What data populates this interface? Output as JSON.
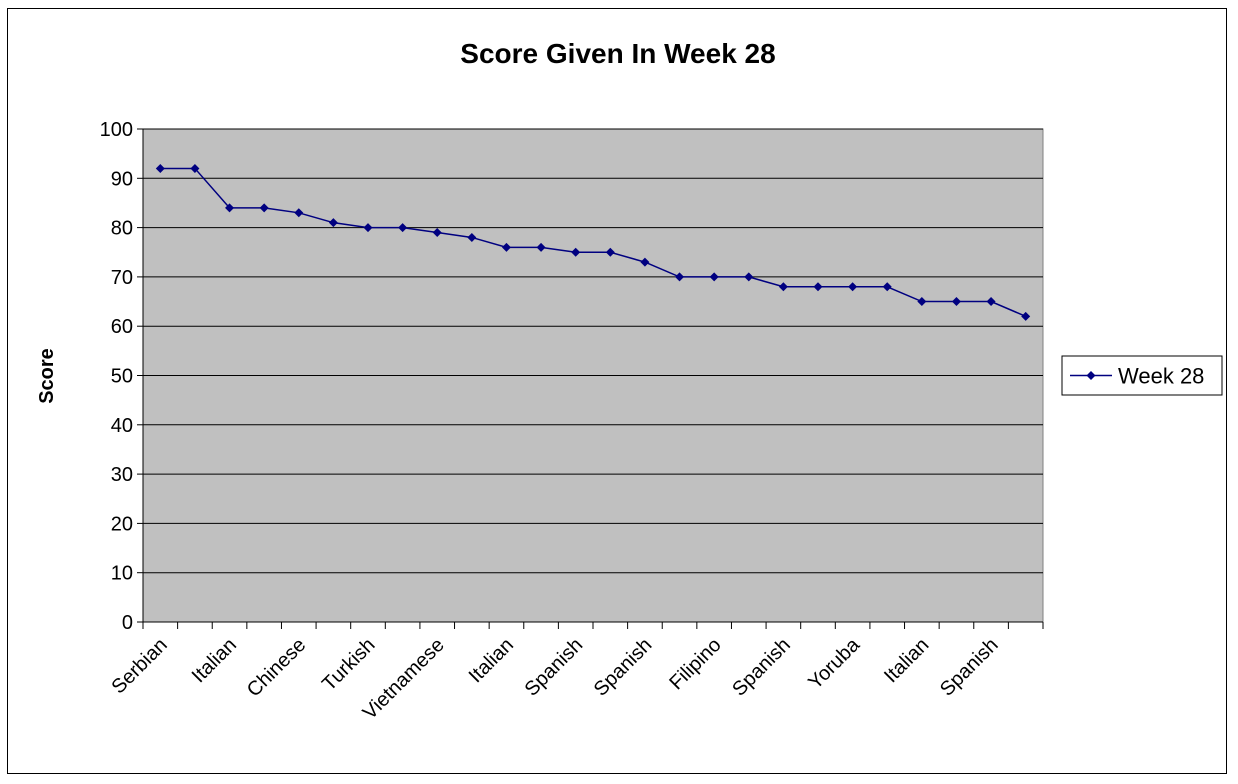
{
  "chart_data": {
    "type": "line",
    "title": "Score Given In Week 28",
    "xlabel": "",
    "ylabel": "Score",
    "ylim": [
      0,
      100
    ],
    "yticks": [
      0,
      10,
      20,
      30,
      40,
      50,
      60,
      70,
      80,
      90,
      100
    ],
    "categories": [
      "Serbian",
      "",
      "Italian",
      "",
      "Chinese",
      "",
      "Turkish",
      "",
      "Vietnamese",
      "",
      "Italian",
      "",
      "Spanish",
      "",
      "Spanish",
      "",
      "Filipino",
      "",
      "Spanish",
      "",
      "Yoruba",
      "",
      "Italian",
      "",
      "Spanish",
      ""
    ],
    "series": [
      {
        "name": "Week 28",
        "values": [
          92,
          92,
          84,
          84,
          83,
          81,
          80,
          80,
          79,
          78,
          76,
          76,
          75,
          75,
          73,
          70,
          70,
          70,
          68,
          68,
          68,
          68,
          65,
          65,
          65,
          62
        ],
        "color": "#000080"
      }
    ],
    "plot_background": "#c0c0c0",
    "grid": true,
    "legend_position": "right"
  }
}
